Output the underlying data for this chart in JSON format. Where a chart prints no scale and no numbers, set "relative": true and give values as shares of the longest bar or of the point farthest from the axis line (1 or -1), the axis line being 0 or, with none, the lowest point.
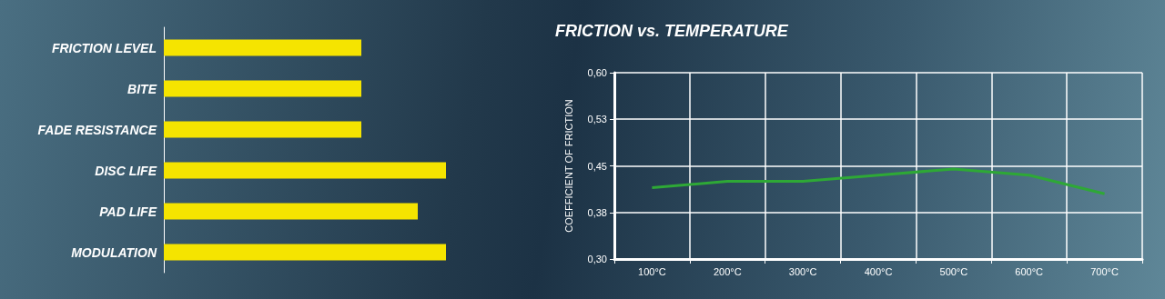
{
  "chart_data": [
    {
      "type": "bar",
      "orientation": "horizontal",
      "relative": true,
      "categories": [
        "FRICTION LEVEL",
        "BITE",
        "FADE RESISTANCE",
        "DISC LIFE",
        "PAD LIFE",
        "MODULATION"
      ],
      "values": [
        0.7,
        0.7,
        0.7,
        1,
        0.9,
        1
      ],
      "color": "#f5e400"
    },
    {
      "type": "line",
      "title": "FRICTION vs. TEMPERATURE",
      "ylabel": "COEFFICIENT OF FRICTION",
      "categories": [
        "100°C",
        "200°C",
        "300°C",
        "400°C",
        "500°C",
        "600°C",
        "700°C"
      ],
      "series": [
        {
          "color": "#2ea836",
          "values": [
            0.415,
            0.425,
            0.425,
            0.435,
            0.445,
            0.435,
            0.405
          ]
        }
      ],
      "ylim": [
        0.3,
        0.6
      ],
      "yticks": [
        {
          "value": 0.3,
          "label": "0,30"
        },
        {
          "value": 0.375,
          "label": "0,38"
        },
        {
          "value": 0.45,
          "label": "0,45"
        },
        {
          "value": 0.525,
          "label": "0,53"
        },
        {
          "value": 0.6,
          "label": "0,60"
        }
      ],
      "grid": true
    }
  ]
}
